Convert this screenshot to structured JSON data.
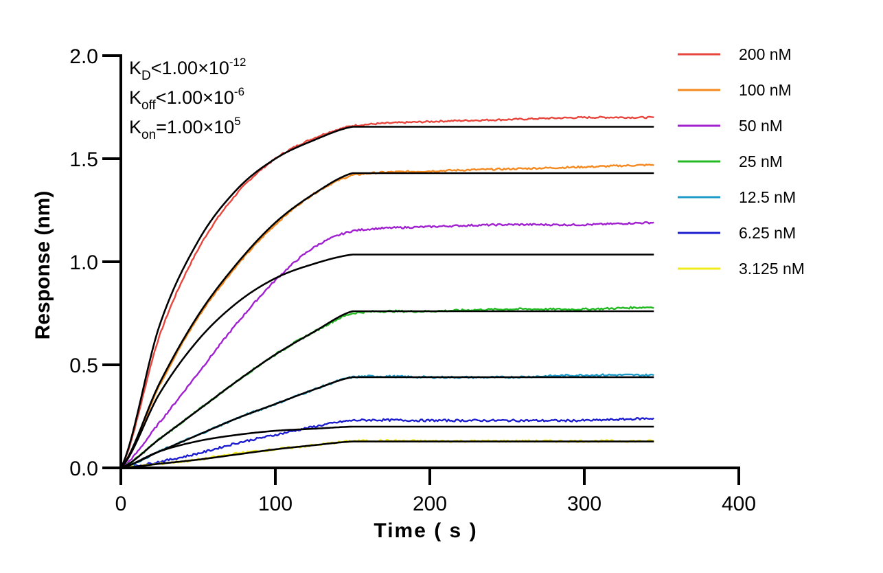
{
  "chart_data": {
    "type": "line",
    "xlabel": "Time ( s )",
    "ylabel": "Response (nm)",
    "xlim": [
      0,
      400
    ],
    "ylim": [
      0,
      2.0
    ],
    "x_ticks": [
      0,
      100,
      200,
      300,
      400
    ],
    "y_ticks": [
      0.0,
      0.5,
      1.0,
      1.5,
      2.0
    ],
    "x_tick_labels": [
      "0",
      "100",
      "200",
      "300",
      "400"
    ],
    "y_tick_labels": [
      "0.0",
      "0.5",
      "1.0",
      "1.5",
      "2.0"
    ],
    "grid": false,
    "legend_position": "top-right",
    "association_end": 150,
    "x_end": 345,
    "annotations": [
      {
        "main": "K",
        "sub": "D",
        "rel": "<1.00×10",
        "sup": "-12"
      },
      {
        "main": "K",
        "sub": "off",
        "rel": "<1.00×10",
        "sup": "-6"
      },
      {
        "main": "K",
        "sub": "on",
        "rel": "=1.00×10",
        "sup": "5"
      }
    ],
    "series": [
      {
        "name": "200 nM",
        "color": "#e8453c",
        "end_response": 1.7,
        "x": [
          0,
          25,
          50,
          75,
          100,
          125,
          150,
          200,
          250,
          300,
          345
        ],
        "y": [
          0,
          0.64,
          1.06,
          1.33,
          1.5,
          1.6,
          1.66,
          1.68,
          1.69,
          1.7,
          1.7
        ]
      },
      {
        "name": "100 nM",
        "color": "#f5891f",
        "end_response": 1.47,
        "x": [
          0,
          25,
          50,
          75,
          100,
          125,
          150,
          200,
          250,
          300,
          345
        ],
        "y": [
          0,
          0.4,
          0.73,
          0.98,
          1.18,
          1.33,
          1.42,
          1.44,
          1.45,
          1.46,
          1.47
        ]
      },
      {
        "name": "50 nM",
        "color": "#a020d0",
        "end_response": 1.19,
        "x": [
          0,
          25,
          50,
          75,
          100,
          125,
          150,
          200,
          250,
          300,
          345
        ],
        "y": [
          0,
          0.22,
          0.46,
          0.7,
          0.91,
          1.07,
          1.15,
          1.17,
          1.18,
          1.18,
          1.19
        ]
      },
      {
        "name": "25 nM",
        "color": "#22b922",
        "end_response": 0.78,
        "x": [
          0,
          25,
          50,
          75,
          100,
          125,
          150,
          200,
          250,
          300,
          345
        ],
        "y": [
          0,
          0.14,
          0.28,
          0.42,
          0.55,
          0.66,
          0.75,
          0.76,
          0.77,
          0.77,
          0.78
        ]
      },
      {
        "name": "12.5 nM",
        "color": "#1e9bc8",
        "end_response": 0.45,
        "x": [
          0,
          25,
          50,
          75,
          100,
          125,
          150,
          200,
          250,
          300,
          345
        ],
        "y": [
          0,
          0.08,
          0.16,
          0.24,
          0.31,
          0.38,
          0.44,
          0.44,
          0.44,
          0.45,
          0.45
        ]
      },
      {
        "name": "6.25 nM",
        "color": "#1c1cd0",
        "end_response": 0.24,
        "x": [
          0,
          25,
          50,
          75,
          100,
          125,
          150,
          200,
          250,
          300,
          345
        ],
        "y": [
          0,
          0.03,
          0.07,
          0.12,
          0.16,
          0.2,
          0.23,
          0.23,
          0.23,
          0.23,
          0.24
        ]
      },
      {
        "name": "3.125 nM",
        "color": "#f2ea1a",
        "end_response": 0.13,
        "x": [
          0,
          25,
          50,
          75,
          100,
          125,
          150,
          200,
          250,
          300,
          345
        ],
        "y": [
          0,
          0.02,
          0.04,
          0.07,
          0.09,
          0.11,
          0.13,
          0.13,
          0.13,
          0.13,
          0.13
        ]
      }
    ],
    "fit_curves": [
      {
        "color": "#000000",
        "plateau": 1.655,
        "x": [
          0,
          25,
          50,
          75,
          100,
          125,
          150,
          345
        ],
        "y": [
          0,
          0.69,
          1.1,
          1.35,
          1.5,
          1.59,
          1.655,
          1.655
        ]
      },
      {
        "color": "#000000",
        "plateau": 1.43,
        "x": [
          0,
          25,
          50,
          75,
          100,
          125,
          150,
          345
        ],
        "y": [
          0,
          0.41,
          0.74,
          0.99,
          1.19,
          1.33,
          1.43,
          1.43
        ]
      },
      {
        "color": "#000000",
        "plateau": 1.035,
        "x": [
          0,
          25,
          50,
          75,
          100,
          125,
          150,
          345
        ],
        "y": [
          0,
          0.36,
          0.62,
          0.8,
          0.92,
          0.99,
          1.035,
          1.035
        ]
      },
      {
        "color": "#000000",
        "plateau": 0.76,
        "x": [
          0,
          25,
          50,
          75,
          100,
          125,
          150,
          345
        ],
        "y": [
          0,
          0.14,
          0.28,
          0.42,
          0.55,
          0.66,
          0.76,
          0.76
        ]
      },
      {
        "color": "#000000",
        "plateau": 0.44,
        "x": [
          0,
          25,
          50,
          75,
          100,
          125,
          150,
          345
        ],
        "y": [
          0,
          0.08,
          0.16,
          0.24,
          0.31,
          0.38,
          0.44,
          0.44
        ]
      },
      {
        "color": "#000000",
        "plateau": 0.2,
        "x": [
          0,
          25,
          50,
          75,
          100,
          125,
          150,
          345
        ],
        "y": [
          0,
          0.08,
          0.13,
          0.16,
          0.18,
          0.19,
          0.2,
          0.2
        ]
      },
      {
        "color": "#000000",
        "plateau": 0.128,
        "x": [
          0,
          25,
          50,
          75,
          100,
          125,
          150,
          345
        ],
        "y": [
          0,
          0.02,
          0.04,
          0.065,
          0.09,
          0.11,
          0.128,
          0.128
        ]
      }
    ]
  }
}
